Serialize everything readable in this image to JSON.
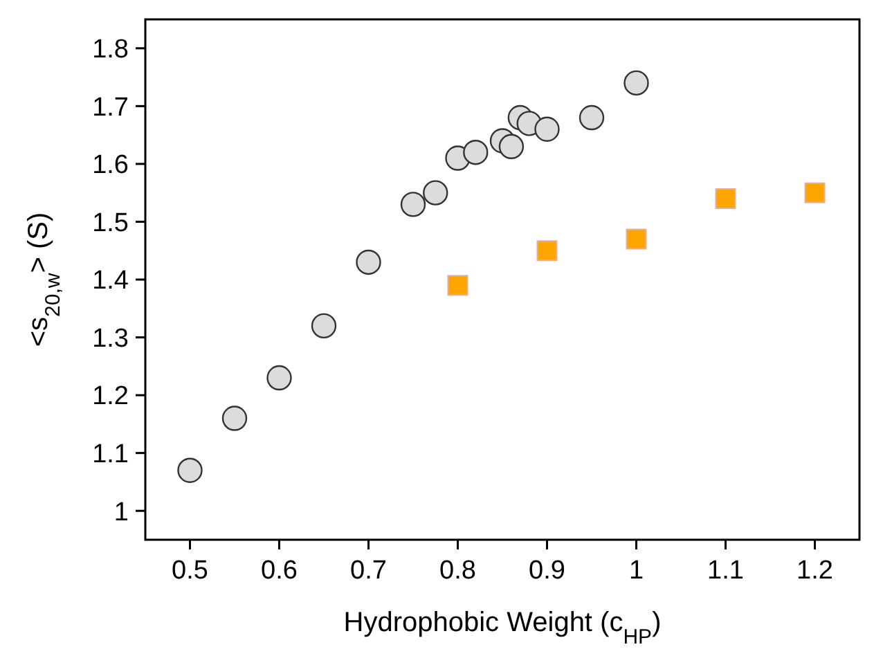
{
  "chart_data": {
    "type": "scatter",
    "xlabel": "Hydrophobic Weight (c$_{HP}$)",
    "ylabel": "<s$_{20,w}$> (S)",
    "xlim": [
      0.45,
      1.25
    ],
    "ylim": [
      0.95,
      1.85
    ],
    "xticks": [
      0.5,
      0.6,
      0.7,
      0.8,
      0.9,
      1,
      1.1,
      1.2
    ],
    "yticks": [
      1,
      1.1,
      1.2,
      1.3,
      1.4,
      1.5,
      1.6,
      1.7,
      1.8
    ],
    "grid": false,
    "series": [
      {
        "color": "#dcdcdc",
        "marker": "circle",
        "x": [
          0.5,
          0.55,
          0.6,
          0.65,
          0.7,
          0.75,
          0.775,
          0.8,
          0.82,
          0.85,
          0.86,
          0.87,
          0.88,
          0.9,
          0.95,
          1.0
        ],
        "values": [
          1.07,
          1.16,
          1.23,
          1.32,
          1.43,
          1.53,
          1.55,
          1.61,
          1.62,
          1.64,
          1.63,
          1.68,
          1.67,
          1.66,
          1.68,
          1.74
        ]
      },
      {
        "color": "#ffa500",
        "marker": "square",
        "x": [
          0.8,
          0.9,
          1.0,
          1.1,
          1.2
        ],
        "values": [
          1.39,
          1.45,
          1.47,
          1.54,
          1.55
        ]
      }
    ]
  }
}
